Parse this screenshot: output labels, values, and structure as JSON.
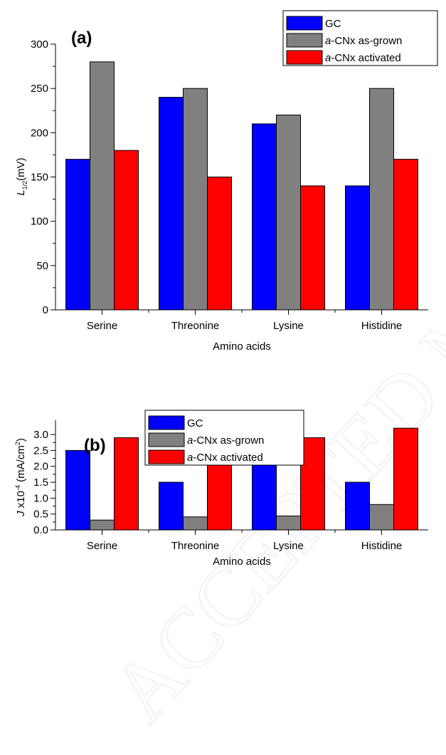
{
  "colors": {
    "GC": "#0000ff",
    "as_grown": "#808080",
    "activated": "#ff0000"
  },
  "watermark": "ACCEPTED MANUSCRIPT",
  "chart_data": [
    {
      "type": "bar",
      "panel_label": "(a)",
      "categories": [
        "Serine",
        "Threonine",
        "Lysine",
        "Histidine"
      ],
      "xlabel": "Amino acids",
      "ylabel_main": "L",
      "ylabel_sub": "1/2",
      "ylabel_unit": "(mV)",
      "ylim": [
        0,
        300
      ],
      "yticks": [
        0,
        50,
        100,
        150,
        200,
        250,
        300
      ],
      "ytick_labels": [
        "0",
        "50",
        "100",
        "150",
        "200",
        "250",
        "300"
      ],
      "legend_position": "top-right",
      "series": [
        {
          "name_italic": "",
          "name_rest": "GC",
          "color": "#0000ff",
          "values": [
            170,
            240,
            210,
            140
          ]
        },
        {
          "name_italic": "a",
          "name_rest": "-CNx as-grown",
          "color": "#808080",
          "values": [
            280,
            250,
            220,
            250
          ]
        },
        {
          "name_italic": "a",
          "name_rest": "-CNx activated",
          "color": "#ff0000",
          "values": [
            180,
            150,
            140,
            170
          ]
        }
      ]
    },
    {
      "type": "bar",
      "panel_label": "(b)",
      "categories": [
        "Serine",
        "Threonine",
        "Lysine",
        "Histidine"
      ],
      "xlabel": "Amino acids",
      "ylabel_main": "J",
      "ylabel_mid": " x10",
      "ylabel_sup": "-4",
      "ylabel_unit": " (mA/cm",
      "ylabel_sup2": "2",
      "ylabel_end": ")",
      "ylim": [
        0,
        3.45
      ],
      "yticks": [
        0,
        0.5,
        1.0,
        1.5,
        2.0,
        2.5,
        3.0
      ],
      "ytick_labels": [
        "0.0",
        "0.5",
        "1.0",
        "1.5",
        "2.0",
        "2.5",
        "3.0"
      ],
      "legend_position": "top-center",
      "series": [
        {
          "name_italic": "",
          "name_rest": "GC",
          "color": "#0000ff",
          "values": [
            2.5,
            1.5,
            2.4,
            1.5
          ]
        },
        {
          "name_italic": "a",
          "name_rest": "-CNx as-grown",
          "color": "#808080",
          "values": [
            0.31,
            0.41,
            0.44,
            0.8
          ]
        },
        {
          "name_italic": "a",
          "name_rest": "-CNx activated",
          "color": "#ff0000",
          "values": [
            2.9,
            2.8,
            2.9,
            3.2
          ]
        }
      ]
    }
  ]
}
